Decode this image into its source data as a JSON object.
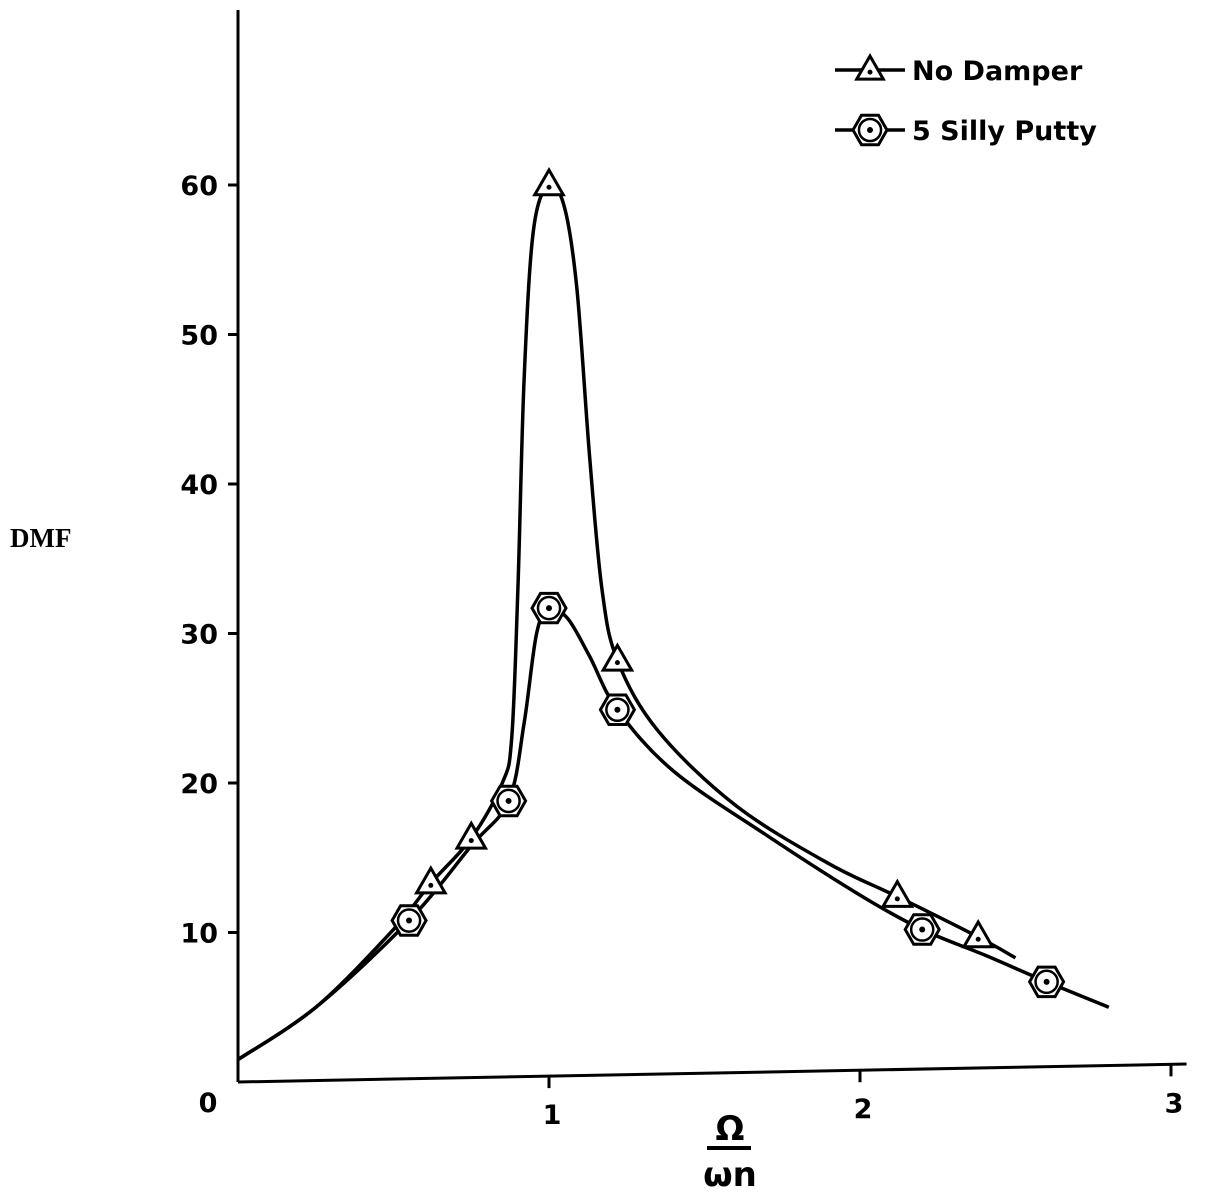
{
  "chart_data": {
    "type": "line",
    "title": "",
    "ylabel": "DMF",
    "xlabel": {
      "numerator": "Ω",
      "denominator": "ωn"
    },
    "xlim": [
      0,
      3.05
    ],
    "ylim": [
      0,
      72
    ],
    "x_ticks": [
      {
        "value": 0,
        "label": "0"
      },
      {
        "value": 1,
        "label": "1"
      },
      {
        "value": 2,
        "label": "2"
      },
      {
        "value": 3,
        "label": "3"
      }
    ],
    "y_ticks": [
      {
        "value": 10,
        "label": "10"
      },
      {
        "value": 20,
        "label": "20"
      },
      {
        "value": 30,
        "label": "30"
      },
      {
        "value": 40,
        "label": "40"
      },
      {
        "value": 50,
        "label": "50"
      },
      {
        "value": 60,
        "label": "60"
      }
    ],
    "grid": false,
    "legend_position": "top-right",
    "series": [
      {
        "name": "No Damper",
        "marker": "triangle",
        "points": [
          {
            "x": 0.62,
            "y": 13.3
          },
          {
            "x": 0.75,
            "y": 16.3
          },
          {
            "x": 1.0,
            "y": 60.0
          },
          {
            "x": 1.22,
            "y": 28.2
          },
          {
            "x": 2.12,
            "y": 12.4
          },
          {
            "x": 2.38,
            "y": 9.7
          }
        ],
        "curve": [
          {
            "x": 0.0,
            "y": 1.5
          },
          {
            "x": 0.25,
            "y": 5.0
          },
          {
            "x": 0.5,
            "y": 10.2
          },
          {
            "x": 0.62,
            "y": 13.3
          },
          {
            "x": 0.75,
            "y": 16.3
          },
          {
            "x": 0.85,
            "y": 20.0
          },
          {
            "x": 0.88,
            "y": 23.0
          },
          {
            "x": 0.9,
            "y": 33.0
          },
          {
            "x": 0.92,
            "y": 47.0
          },
          {
            "x": 0.95,
            "y": 57.0
          },
          {
            "x": 1.0,
            "y": 60.0
          },
          {
            "x": 1.05,
            "y": 58.5
          },
          {
            "x": 1.09,
            "y": 53.0
          },
          {
            "x": 1.13,
            "y": 42.0
          },
          {
            "x": 1.17,
            "y": 33.0
          },
          {
            "x": 1.22,
            "y": 28.2
          },
          {
            "x": 1.35,
            "y": 23.5
          },
          {
            "x": 1.6,
            "y": 18.5
          },
          {
            "x": 1.9,
            "y": 14.6
          },
          {
            "x": 2.12,
            "y": 12.4
          },
          {
            "x": 2.38,
            "y": 9.7
          },
          {
            "x": 2.5,
            "y": 8.3
          }
        ]
      },
      {
        "name": "5 Silly Putty",
        "marker": "hexagon-dot",
        "points": [
          {
            "x": 0.55,
            "y": 10.8
          },
          {
            "x": 0.87,
            "y": 18.8
          },
          {
            "x": 1.0,
            "y": 31.7
          },
          {
            "x": 1.22,
            "y": 24.9
          },
          {
            "x": 2.2,
            "y": 10.2
          },
          {
            "x": 2.6,
            "y": 6.7
          }
        ],
        "curve": [
          {
            "x": 0.0,
            "y": 1.5
          },
          {
            "x": 0.25,
            "y": 5.0
          },
          {
            "x": 0.55,
            "y": 10.8
          },
          {
            "x": 0.75,
            "y": 15.8
          },
          {
            "x": 0.87,
            "y": 18.8
          },
          {
            "x": 0.92,
            "y": 24.0
          },
          {
            "x": 0.96,
            "y": 30.0
          },
          {
            "x": 1.0,
            "y": 31.7
          },
          {
            "x": 1.06,
            "y": 31.0
          },
          {
            "x": 1.13,
            "y": 28.5
          },
          {
            "x": 1.22,
            "y": 24.9
          },
          {
            "x": 1.4,
            "y": 20.8
          },
          {
            "x": 1.7,
            "y": 16.5
          },
          {
            "x": 2.0,
            "y": 12.5
          },
          {
            "x": 2.2,
            "y": 10.2
          },
          {
            "x": 2.4,
            "y": 8.5
          },
          {
            "x": 2.6,
            "y": 6.7
          },
          {
            "x": 2.8,
            "y": 5.0
          }
        ]
      }
    ]
  }
}
